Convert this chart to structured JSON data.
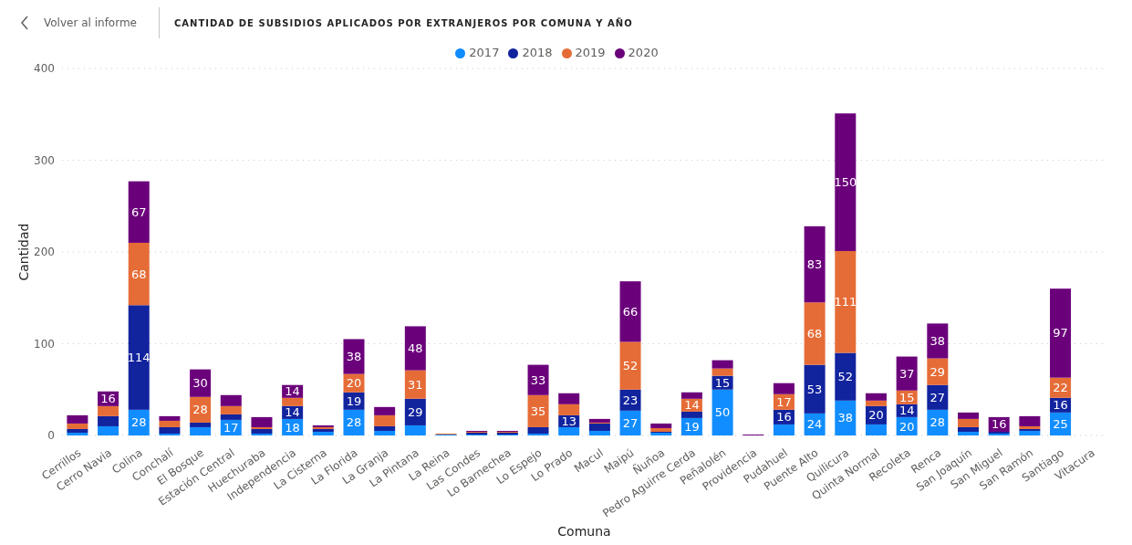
{
  "chart_data": {
    "type": "bar",
    "title": "CANTIDAD DE SUBSIDIOS APLICADOS POR EXTRANJEROS POR COMUNA Y AÑO",
    "annotations": [
      "Volver al informe"
    ],
    "xlabel": "Comuna",
    "ylabel": "Cantidad",
    "categories": [
      "Cerrillos",
      "Cerro Navia",
      "Colina",
      "Conchalí",
      "El Bosque",
      "Estación Central",
      "Huechuraba",
      "Independencia",
      "La Cisterna",
      "La Florida",
      "La Granja",
      "La Pintana",
      "La Reina",
      "Las Condes",
      "Lo Barnechea",
      "Lo Espejo",
      "Lo Prado",
      "Macul",
      "Maipú",
      "Ñuñoa",
      "Pedro Aguirre Cerda",
      "Peñalolén",
      "Providencia",
      "Pudahuel",
      "Puente Alto",
      "Quilicura",
      "Quinta Normal",
      "Recoleta",
      "Renca",
      "San Joaquín",
      "San Miguel",
      "San Ramón",
      "Santiago",
      "Vitacura"
    ],
    "stacked": true,
    "series": [
      {
        "name": "2017",
        "color": "#118dff",
        "values": [
          3,
          10,
          28,
          2,
          9,
          17,
          2,
          18,
          4,
          28,
          5,
          11,
          1,
          1,
          1,
          2,
          9,
          5,
          27,
          3,
          19,
          50,
          0,
          12,
          24,
          38,
          12,
          20,
          28,
          4,
          2,
          5,
          25,
          null
        ],
        "value_labels": [
          null,
          null,
          "28",
          null,
          null,
          "17",
          null,
          "18",
          null,
          "28",
          null,
          null,
          null,
          null,
          null,
          null,
          null,
          null,
          "27",
          null,
          "19",
          "50",
          null,
          null,
          "24",
          "38",
          null,
          "20",
          "28",
          null,
          null,
          null,
          "25",
          null
        ]
      },
      {
        "name": "2018",
        "color": "#12239e",
        "values": [
          4,
          11,
          114,
          7,
          5,
          6,
          5,
          14,
          3,
          19,
          5,
          29,
          0,
          2,
          2,
          7,
          13,
          8,
          23,
          1,
          7,
          15,
          0,
          16,
          53,
          52,
          20,
          14,
          27,
          5,
          2,
          2,
          16,
          null
        ],
        "value_labels": [
          null,
          null,
          "114",
          null,
          null,
          null,
          null,
          "14",
          null,
          "19",
          null,
          "29",
          null,
          null,
          null,
          null,
          "13",
          null,
          "23",
          null,
          null,
          "15",
          null,
          "16",
          "53",
          "52",
          "20",
          "14",
          "27",
          null,
          null,
          null,
          "16",
          null
        ]
      },
      {
        "name": "2019",
        "color": "#e66c37",
        "values": [
          6,
          11,
          68,
          7,
          28,
          9,
          2,
          9,
          2,
          20,
          12,
          31,
          1,
          1,
          1,
          35,
          12,
          1,
          52,
          4,
          14,
          8,
          0,
          17,
          68,
          111,
          6,
          15,
          29,
          9,
          0,
          3,
          22,
          null
        ],
        "value_labels": [
          null,
          null,
          "68",
          null,
          "28",
          null,
          null,
          null,
          null,
          "20",
          null,
          "31",
          null,
          null,
          null,
          "35",
          null,
          null,
          "52",
          null,
          "14",
          null,
          null,
          "17",
          "68",
          "111",
          null,
          "15",
          "29",
          null,
          null,
          null,
          "22",
          null
        ]
      },
      {
        "name": "2020",
        "color": "#6b007b",
        "values": [
          9,
          16,
          67,
          5,
          30,
          12,
          11,
          14,
          2,
          38,
          9,
          48,
          0,
          1,
          1,
          33,
          12,
          4,
          66,
          5,
          7,
          9,
          1,
          12,
          83,
          150,
          8,
          37,
          38,
          7,
          16,
          11,
          97,
          null
        ],
        "value_labels": [
          null,
          "16",
          "67",
          null,
          "30",
          null,
          null,
          "14",
          null,
          "38",
          null,
          "48",
          null,
          null,
          null,
          "33",
          null,
          null,
          "66",
          null,
          null,
          null,
          null,
          null,
          "83",
          "150",
          null,
          "37",
          "38",
          null,
          "16",
          null,
          "97",
          null
        ]
      }
    ],
    "ylim": [
      0,
      400
    ],
    "yticks": [
      0,
      100,
      200,
      300,
      400
    ],
    "grid": "y",
    "legend": "top"
  }
}
